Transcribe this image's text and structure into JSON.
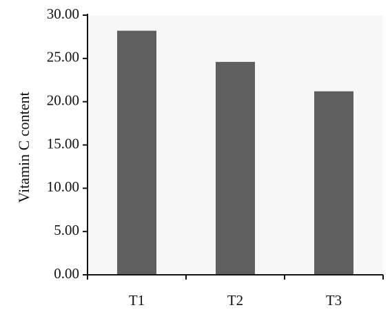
{
  "chart_data": {
    "type": "bar",
    "title": "",
    "xlabel": "",
    "ylabel": "Vitamin C content",
    "categories": [
      "T1",
      "T2",
      "T3"
    ],
    "values": [
      28.2,
      24.6,
      21.2
    ],
    "ylim": [
      0,
      30
    ],
    "yticks": [
      "0.00",
      "5.00",
      "10.00",
      "15.00",
      "20.00",
      "25.00",
      "30.00"
    ],
    "grid": false,
    "legend": "none",
    "bar_color": "#5f5f5f",
    "plot_background": "#f7f7f7",
    "axis_color": "#111111"
  }
}
